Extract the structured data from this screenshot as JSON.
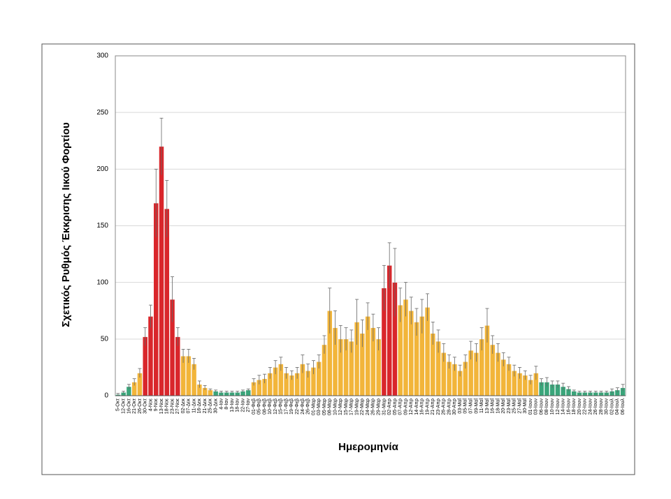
{
  "chart_data": {
    "type": "bar",
    "x_label": "Ημερομηνία",
    "y_label": "Σχετικός Ρυθμός Έκκρισης Ιικού Φορτίου",
    "categories": [
      "5-Οκτ",
      "12-Οκτ",
      "16-Οκτ",
      "21-Οκτ",
      "26-Οκτ",
      "30-Οκτ",
      "4-Νοε",
      "9-Νοε",
      "13-Νοε",
      "18-Νοε",
      "23-Νοε",
      "27-Νοε",
      "02-Δεκ",
      "07-Δεκ",
      "11-Δεκ",
      "16-Δεκ",
      "21-Δεκ",
      "25-Δεκ",
      "30-Δεκ",
      "4-Ιαν",
      "8-Ιαν",
      "13-Ιαν",
      "18-Ιαν",
      "22-Ιαν",
      "27-Ιαν",
      "01-Φεβ",
      "05-Φεβ",
      "08-Φεβ",
      "10-Φεβ",
      "12-Φεβ",
      "15-Φεβ",
      "17-Φεβ",
      "19-Φεβ",
      "22-Φεβ",
      "24-Φεβ",
      "26-Φεβ",
      "01-Μαρ",
      "03-Μαρ",
      "05-Μαρ",
      "08-Μαρ",
      "10-Μαρ",
      "12-Μαρ",
      "15-Μαρ",
      "17-Μαρ",
      "19-Μαρ",
      "22-Μαρ",
      "24-Μαρ",
      "26-Μαρ",
      "29-Μαρ",
      "31-Μαρ",
      "02-Απρ",
      "05-Απρ",
      "07-Απρ",
      "09-Απρ",
      "12-Απρ",
      "14-Απρ",
      "16-Απρ",
      "19-Απρ",
      "21-Απρ",
      "23-Απρ",
      "26-Απρ",
      "28-Απρ",
      "30-Απρ",
      "03-Μαΐ",
      "05-Μαΐ",
      "07-Μαΐ",
      "09-Μαΐ",
      "11-Μαΐ",
      "13-Μαΐ",
      "16-Μαΐ",
      "18-Μαΐ",
      "20-Μαΐ",
      "23-Μαΐ",
      "25-Μαΐ",
      "27-Μαΐ",
      "30-Μαΐ",
      "01-Ιουν",
      "03-Ιουν",
      "06-Ιουν",
      "08-Ιουν",
      "10-Ιουν",
      "12-Ιουν",
      "14-Ιουν",
      "16-Ιουν",
      "18-Ιουν",
      "20-Ιουν",
      "22-Ιουν",
      "24-Ιουν",
      "26-Ιουν",
      "28-Ιουν",
      "30-Ιουν",
      "02-Ιουλ",
      "04-Ιουλ",
      "06-Ιουλ"
    ],
    "values": [
      1,
      3,
      8,
      12,
      20,
      52,
      70,
      170,
      220,
      165,
      85,
      52,
      35,
      35,
      28,
      10,
      7,
      5,
      4,
      3,
      3,
      3,
      3,
      4,
      5,
      12,
      14,
      15,
      20,
      25,
      28,
      20,
      18,
      20,
      28,
      22,
      25,
      30,
      45,
      75,
      60,
      50,
      50,
      48,
      65,
      55,
      70,
      60,
      50,
      95,
      115,
      100,
      80,
      85,
      75,
      65,
      70,
      78,
      55,
      48,
      38,
      30,
      28,
      22,
      30,
      40,
      38,
      50,
      62,
      45,
      38,
      32,
      28,
      22,
      20,
      18,
      14,
      20,
      12,
      12,
      10,
      10,
      8,
      6,
      4,
      3,
      3,
      3,
      3,
      3,
      3,
      4,
      5,
      7
    ],
    "errors": [
      1,
      1,
      2,
      3,
      4,
      8,
      10,
      30,
      25,
      25,
      20,
      8,
      6,
      6,
      5,
      3,
      2,
      1,
      1,
      1,
      1,
      1,
      1,
      1,
      1,
      3,
      4,
      4,
      5,
      6,
      6,
      5,
      4,
      5,
      8,
      6,
      6,
      6,
      8,
      20,
      15,
      12,
      10,
      10,
      20,
      12,
      12,
      12,
      10,
      20,
      20,
      30,
      15,
      15,
      12,
      12,
      15,
      12,
      10,
      10,
      8,
      6,
      6,
      5,
      6,
      8,
      8,
      10,
      15,
      8,
      8,
      6,
      6,
      5,
      5,
      4,
      4,
      6,
      3,
      4,
      3,
      3,
      3,
      2,
      1,
      1,
      1,
      1,
      1,
      1,
      1,
      2,
      2,
      3
    ],
    "colors": [
      "#3aa57a",
      "#3aa57a",
      "#3aa57a",
      "#f2b53a",
      "#f2b53a",
      "#d9262b",
      "#d9262b",
      "#d9262b",
      "#d9262b",
      "#d9262b",
      "#d9262b",
      "#d9262b",
      "#f2b53a",
      "#f2b53a",
      "#f2b53a",
      "#f2b53a",
      "#f2b53a",
      "#f2b53a",
      "#3aa57a",
      "#3aa57a",
      "#3aa57a",
      "#3aa57a",
      "#3aa57a",
      "#3aa57a",
      "#3aa57a",
      "#f2b53a",
      "#f2b53a",
      "#f2b53a",
      "#f2b53a",
      "#f2b53a",
      "#f2b53a",
      "#f2b53a",
      "#f2b53a",
      "#f2b53a",
      "#f2b53a",
      "#f2b53a",
      "#f2b53a",
      "#f2b53a",
      "#f2b53a",
      "#f2b53a",
      "#f2b53a",
      "#f2b53a",
      "#f2b53a",
      "#f2b53a",
      "#f2b53a",
      "#f2b53a",
      "#f2b53a",
      "#f2b53a",
      "#f2b53a",
      "#d9262b",
      "#d9262b",
      "#d9262b",
      "#f2b53a",
      "#f2b53a",
      "#f2b53a",
      "#f2b53a",
      "#f2b53a",
      "#f2b53a",
      "#f2b53a",
      "#f2b53a",
      "#f2b53a",
      "#f2b53a",
      "#f2b53a",
      "#f2b53a",
      "#f2b53a",
      "#f2b53a",
      "#f2b53a",
      "#f2b53a",
      "#f2b53a",
      "#f2b53a",
      "#f2b53a",
      "#f2b53a",
      "#f2b53a",
      "#f2b53a",
      "#f2b53a",
      "#f2b53a",
      "#f2b53a",
      "#f2b53a",
      "#3aa57a",
      "#3aa57a",
      "#3aa57a",
      "#3aa57a",
      "#3aa57a",
      "#3aa57a",
      "#3aa57a",
      "#3aa57a",
      "#3aa57a",
      "#3aa57a",
      "#3aa57a",
      "#3aa57a",
      "#3aa57a",
      "#3aa57a",
      "#3aa57a",
      "#3aa57a"
    ],
    "ylim": [
      0,
      300
    ],
    "yticks": [
      0,
      50,
      100,
      150,
      200,
      250,
      300
    ],
    "grid": true
  }
}
